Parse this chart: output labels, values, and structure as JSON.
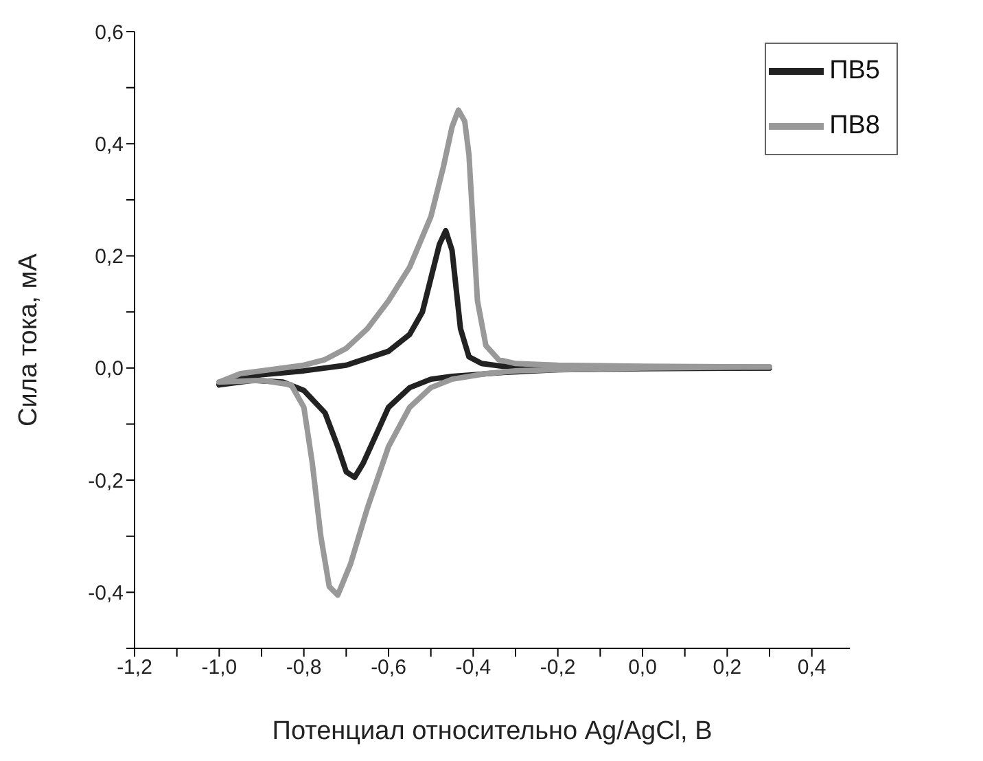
{
  "chart_data": {
    "type": "line",
    "xlabel": "Потенциал относительно Ag/AgCl, В",
    "ylabel": "Сила тока, мА",
    "xlim": [
      -1.2,
      0.49
    ],
    "ylim": [
      -0.5,
      0.6
    ],
    "xticks": [
      {
        "value": -1.2,
        "label": "-1,2"
      },
      {
        "value": -1.1,
        "label": null
      },
      {
        "value": -1.0,
        "label": "-1,0"
      },
      {
        "value": -0.9,
        "label": null
      },
      {
        "value": -0.8,
        "label": "-0,8"
      },
      {
        "value": -0.7,
        "label": null
      },
      {
        "value": -0.6,
        "label": "-0,6"
      },
      {
        "value": -0.5,
        "label": null
      },
      {
        "value": -0.4,
        "label": "-0,4"
      },
      {
        "value": -0.3,
        "label": null
      },
      {
        "value": -0.2,
        "label": "-0,2"
      },
      {
        "value": -0.1,
        "label": null
      },
      {
        "value": 0,
        "label": "0,0"
      },
      {
        "value": 0.1,
        "label": null
      },
      {
        "value": 0.2,
        "label": "0,2"
      },
      {
        "value": 0.3,
        "label": null
      },
      {
        "value": 0.4,
        "label": "0,4"
      }
    ],
    "yticks": [
      {
        "value": -0.5,
        "label": null
      },
      {
        "value": -0.4,
        "label": "-0,4"
      },
      {
        "value": -0.3,
        "label": null
      },
      {
        "value": -0.2,
        "label": "-0,2"
      },
      {
        "value": -0.1,
        "label": null
      },
      {
        "value": 0,
        "label": "0,0"
      },
      {
        "value": 0.1,
        "label": null
      },
      {
        "value": 0.2,
        "label": "0,2"
      },
      {
        "value": 0.3,
        "label": null
      },
      {
        "value": 0.4,
        "label": "0,4"
      },
      {
        "value": 0.5,
        "label": null
      },
      {
        "value": 0.6,
        "label": "0,6"
      }
    ],
    "grid": false,
    "legend": "top right",
    "marker": "none",
    "line_style": "solid",
    "series": [
      {
        "name": "ПВ5",
        "color": "#222222",
        "x": [
          -1.0,
          -0.95,
          -0.9,
          -0.8,
          -0.7,
          -0.6,
          -0.55,
          -0.52,
          -0.5,
          -0.48,
          -0.465,
          -0.45,
          -0.44,
          -0.43,
          -0.41,
          -0.38,
          -0.33,
          -0.2,
          0.0,
          0.3
        ],
        "values": [
          -0.03,
          -0.018,
          -0.012,
          -0.005,
          0.005,
          0.03,
          0.06,
          0.1,
          0.16,
          0.22,
          0.245,
          0.21,
          0.14,
          0.07,
          0.02,
          0.008,
          0.003,
          0.002,
          0.001,
          0.0
        ]
      },
      {
        "color": "#222222",
        "x": [
          0.3,
          0.0,
          -0.2,
          -0.33,
          -0.4,
          -0.45,
          -0.5,
          -0.55,
          -0.6,
          -0.63,
          -0.66,
          -0.68,
          -0.7,
          -0.72,
          -0.75,
          -0.8,
          -0.85,
          -0.92,
          -1.0
        ],
        "values": [
          0.0,
          -0.001,
          -0.003,
          -0.008,
          -0.012,
          -0.015,
          -0.02,
          -0.035,
          -0.07,
          -0.12,
          -0.17,
          -0.195,
          -0.185,
          -0.14,
          -0.08,
          -0.04,
          -0.025,
          -0.022,
          -0.03
        ]
      },
      {
        "name": "ПВ8",
        "color": "#999999",
        "x": [
          -1.0,
          -0.95,
          -0.9,
          -0.8,
          -0.75,
          -0.7,
          -0.65,
          -0.6,
          -0.55,
          -0.5,
          -0.47,
          -0.45,
          -0.435,
          -0.42,
          -0.41,
          -0.4,
          -0.39,
          -0.37,
          -0.34,
          -0.3,
          -0.2,
          0.0,
          0.3
        ],
        "values": [
          -0.025,
          -0.01,
          -0.005,
          0.005,
          0.015,
          0.035,
          0.07,
          0.12,
          0.18,
          0.27,
          0.36,
          0.43,
          0.46,
          0.44,
          0.38,
          0.25,
          0.12,
          0.04,
          0.015,
          0.008,
          0.005,
          0.003,
          0.002
        ]
      },
      {
        "color": "#999999",
        "x": [
          0.3,
          0.0,
          -0.2,
          -0.3,
          -0.37,
          -0.45,
          -0.5,
          -0.55,
          -0.6,
          -0.65,
          -0.69,
          -0.72,
          -0.74,
          -0.76,
          -0.78,
          -0.8,
          -0.83,
          -0.9,
          -1.0
        ],
        "values": [
          0.002,
          0.0,
          -0.003,
          -0.005,
          -0.01,
          -0.02,
          -0.035,
          -0.07,
          -0.14,
          -0.25,
          -0.35,
          -0.405,
          -0.39,
          -0.3,
          -0.17,
          -0.07,
          -0.03,
          -0.022,
          -0.025
        ]
      }
    ]
  }
}
